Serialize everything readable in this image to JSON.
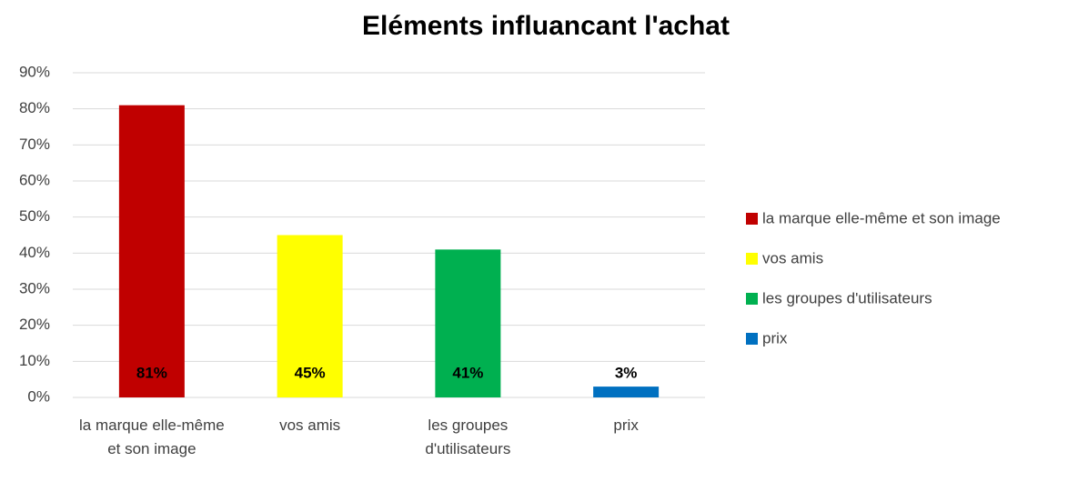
{
  "chart_data": {
    "type": "bar",
    "title": "Eléments influancant l'achat",
    "categories": [
      "la marque elle-même et son image",
      "vos amis",
      "les groupes d'utilisateurs",
      "prix"
    ],
    "values": [
      81,
      45,
      41,
      3
    ],
    "value_labels": [
      "81%",
      "45%",
      "41%",
      "3%"
    ],
    "colors": [
      "#c00000",
      "#ffff00",
      "#00b050",
      "#0070c0"
    ],
    "ylim": [
      0,
      90
    ],
    "yticks": [
      {
        "value": 0,
        "label": "0%"
      },
      {
        "value": 10,
        "label": "10%"
      },
      {
        "value": 20,
        "label": "20%"
      },
      {
        "value": 30,
        "label": "30%"
      },
      {
        "value": 40,
        "label": "40%"
      },
      {
        "value": 50,
        "label": "50%"
      },
      {
        "value": 60,
        "label": "60%"
      },
      {
        "value": 70,
        "label": "70%"
      },
      {
        "value": 80,
        "label": "80%"
      },
      {
        "value": 90,
        "label": "90%"
      }
    ],
    "grid": true,
    "legend": "right"
  }
}
